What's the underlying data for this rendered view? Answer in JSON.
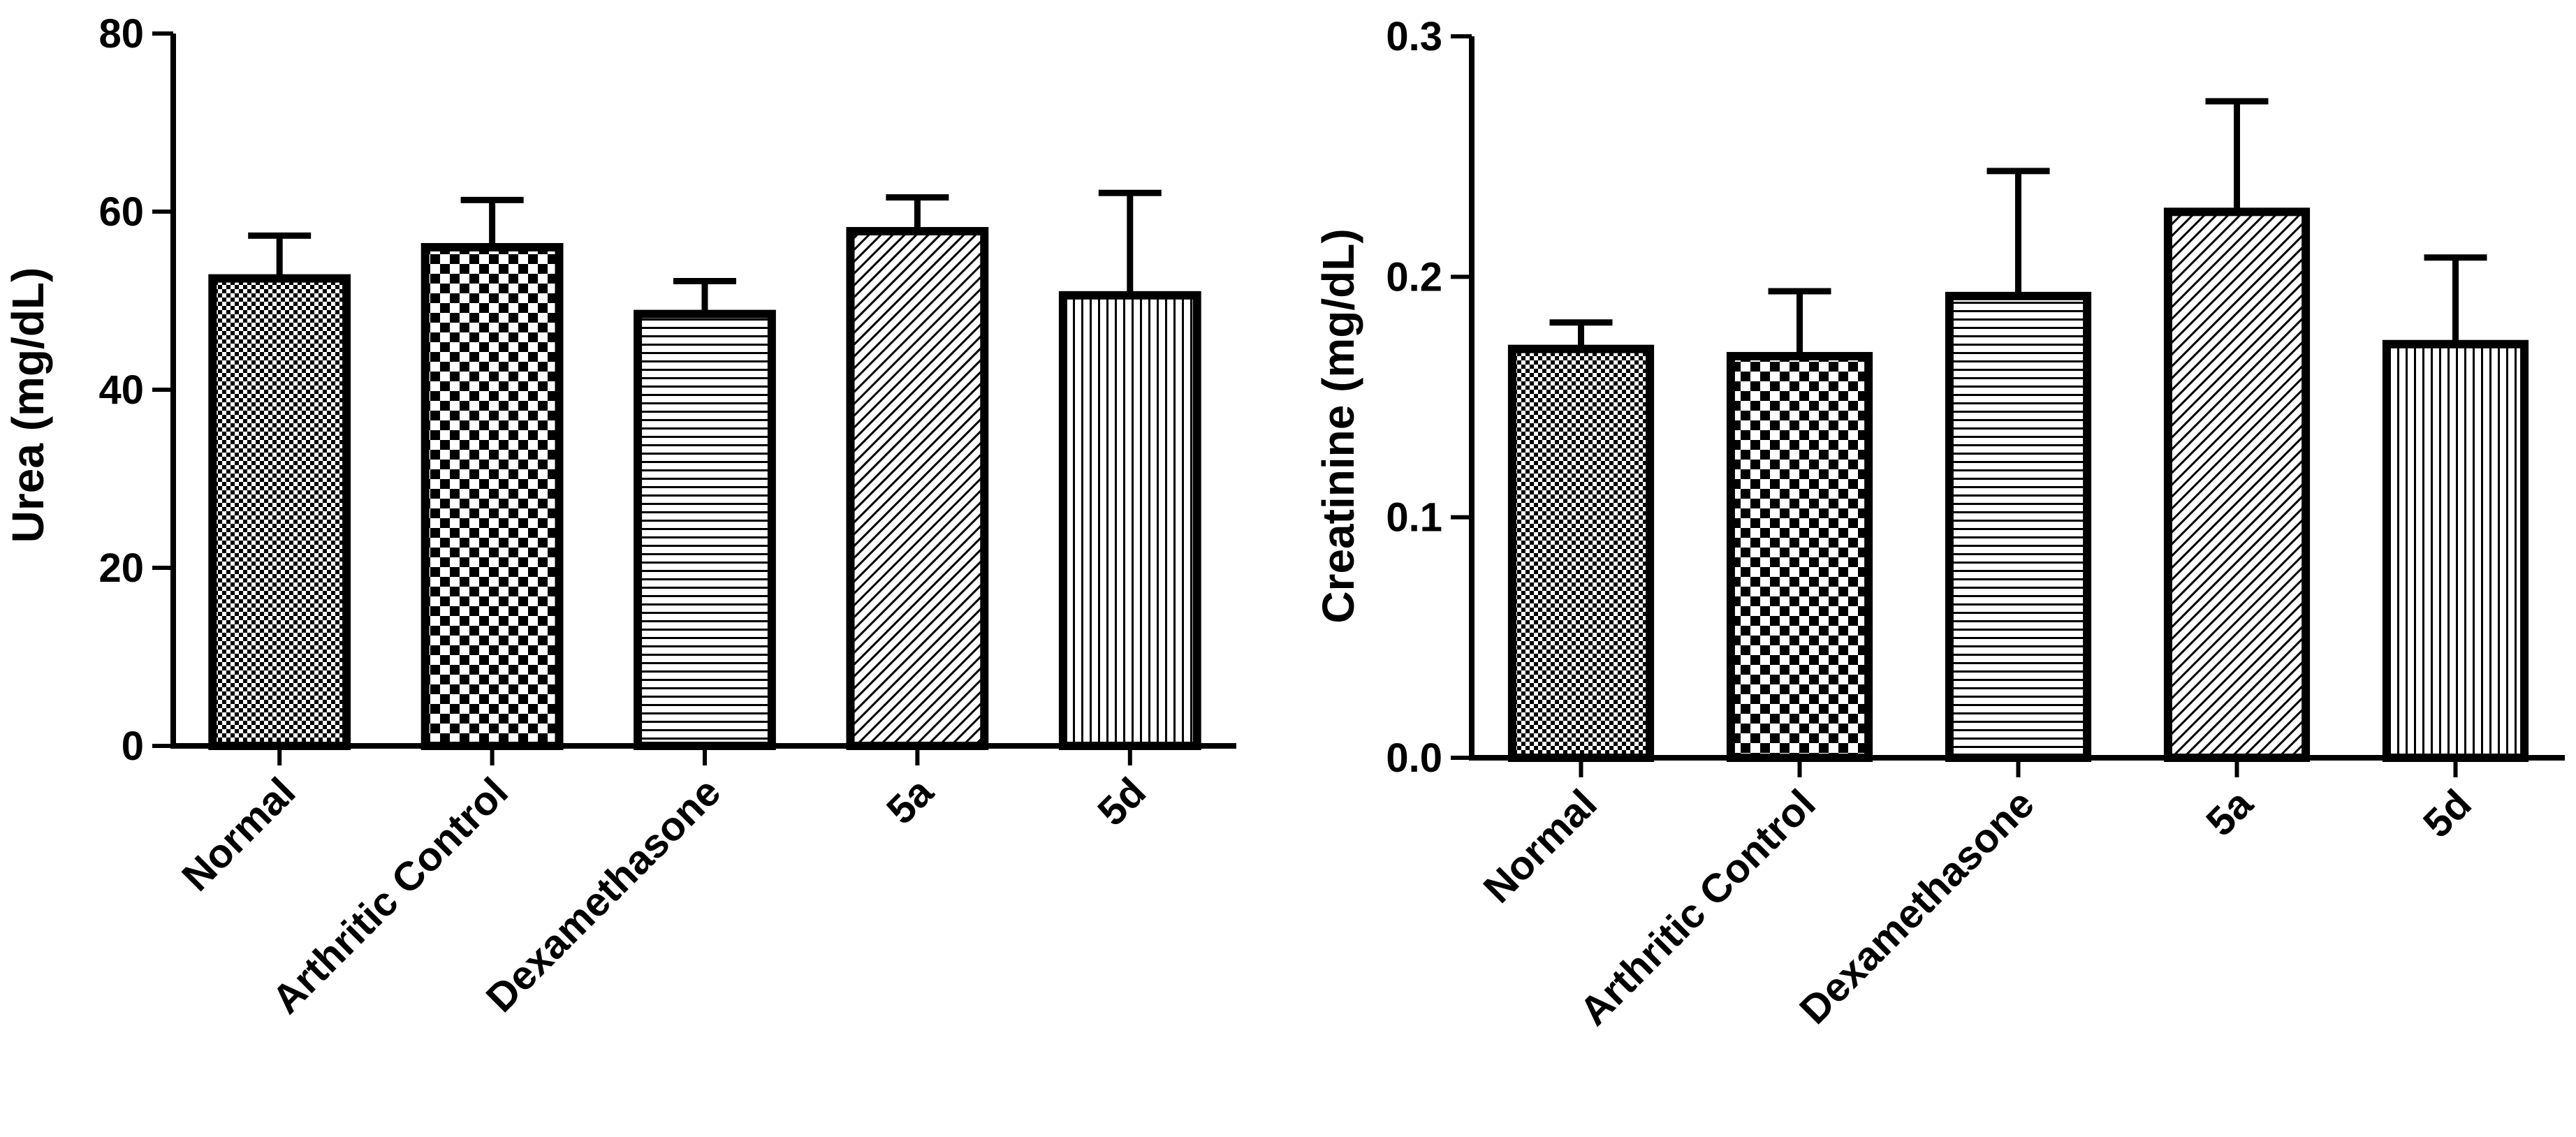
{
  "chart_data": [
    {
      "type": "bar",
      "title": "",
      "xlabel": "",
      "ylabel": "Urea (mg/dL)",
      "ylim": [
        0,
        80
      ],
      "yticks": [
        0,
        20,
        40,
        60,
        80
      ],
      "ytick_labels": [
        "0",
        "20",
        "40",
        "60",
        "80"
      ],
      "categories": [
        "Normal",
        "Arthritic Control",
        "Dexamethasone",
        "5a",
        "5d"
      ],
      "values": [
        52.5,
        56,
        48.5,
        57.8,
        50.6
      ],
      "errors": [
        4.8,
        5.3,
        3.7,
        3.8,
        11.5
      ],
      "patterns": [
        "fine-check",
        "checker",
        "horizontal",
        "diagonal",
        "vertical"
      ]
    },
    {
      "type": "bar",
      "title": "",
      "xlabel": "",
      "ylabel": "Creatinine (mg/dL)",
      "ylim": [
        0,
        0.3
      ],
      "yticks": [
        0,
        0.1,
        0.2,
        0.3
      ],
      "ytick_labels": [
        "0.0",
        "0.1",
        "0.2",
        "0.3"
      ],
      "categories": [
        "Normal",
        "Arthritic Control",
        "Dexamethasone",
        "5a",
        "5d"
      ],
      "values": [
        0.17,
        0.167,
        0.192,
        0.227,
        0.172
      ],
      "errors": [
        0.011,
        0.027,
        0.052,
        0.046,
        0.036
      ],
      "patterns": [
        "fine-check",
        "checker",
        "horizontal",
        "diagonal",
        "vertical"
      ]
    }
  ]
}
